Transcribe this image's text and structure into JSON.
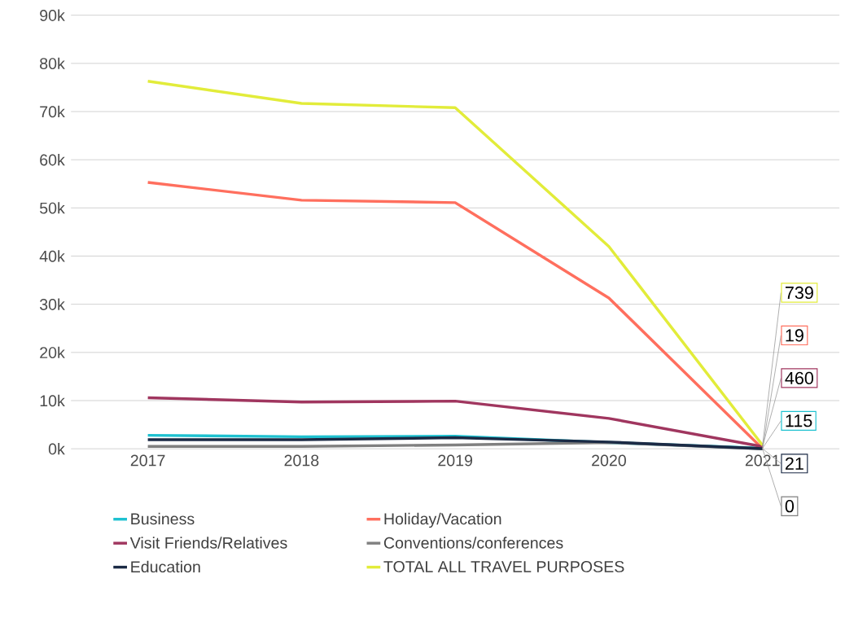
{
  "chart_data": {
    "type": "line",
    "categories": [
      "2017",
      "2018",
      "2019",
      "2020",
      "2021"
    ],
    "series": [
      {
        "name": "Business",
        "color": "#1ec1d0",
        "values": [
          2800,
          2500,
          2600,
          1300,
          115
        ],
        "value_labels": [
          null,
          null,
          null,
          null,
          "115"
        ]
      },
      {
        "name": "Holiday/Vacation",
        "color": "#ff6f5e",
        "values": [
          55300,
          51600,
          51100,
          31300,
          19
        ],
        "value_labels": [
          null,
          null,
          null,
          null,
          "19"
        ]
      },
      {
        "name": "Visit Friends/Relatives",
        "color": "#a0365f",
        "values": [
          10600,
          9700,
          9900,
          6300,
          460
        ],
        "value_labels": [
          null,
          null,
          null,
          null,
          "460"
        ]
      },
      {
        "name": "Conventions/conferences",
        "color": "#808080",
        "values": [
          500,
          500,
          800,
          1300,
          0
        ],
        "value_labels": [
          null,
          null,
          null,
          null,
          "0"
        ]
      },
      {
        "name": "Education",
        "color": "#1b2a45",
        "values": [
          1900,
          1900,
          2300,
          1400,
          21
        ],
        "value_labels": [
          null,
          null,
          null,
          null,
          "21"
        ]
      },
      {
        "name": "TOTAL ALL TRAVEL PURPOSES",
        "color": "#e2ec3a",
        "values": [
          76300,
          71700,
          70800,
          42000,
          739
        ],
        "value_labels": [
          null,
          null,
          null,
          null,
          "739"
        ]
      }
    ],
    "ylim": [
      0,
      90000
    ],
    "yticks": [
      {
        "value": 0,
        "label": "0k"
      },
      {
        "value": 10000,
        "label": "10k"
      },
      {
        "value": 20000,
        "label": "20k"
      },
      {
        "value": 30000,
        "label": "30k"
      },
      {
        "value": 40000,
        "label": "40k"
      },
      {
        "value": 50000,
        "label": "50k"
      },
      {
        "value": 60000,
        "label": "60k"
      },
      {
        "value": 70000,
        "label": "70k"
      },
      {
        "value": 80000,
        "label": "80k"
      },
      {
        "value": 90000,
        "label": "90k"
      }
    ],
    "grid": "y",
    "legend": "bottom"
  }
}
